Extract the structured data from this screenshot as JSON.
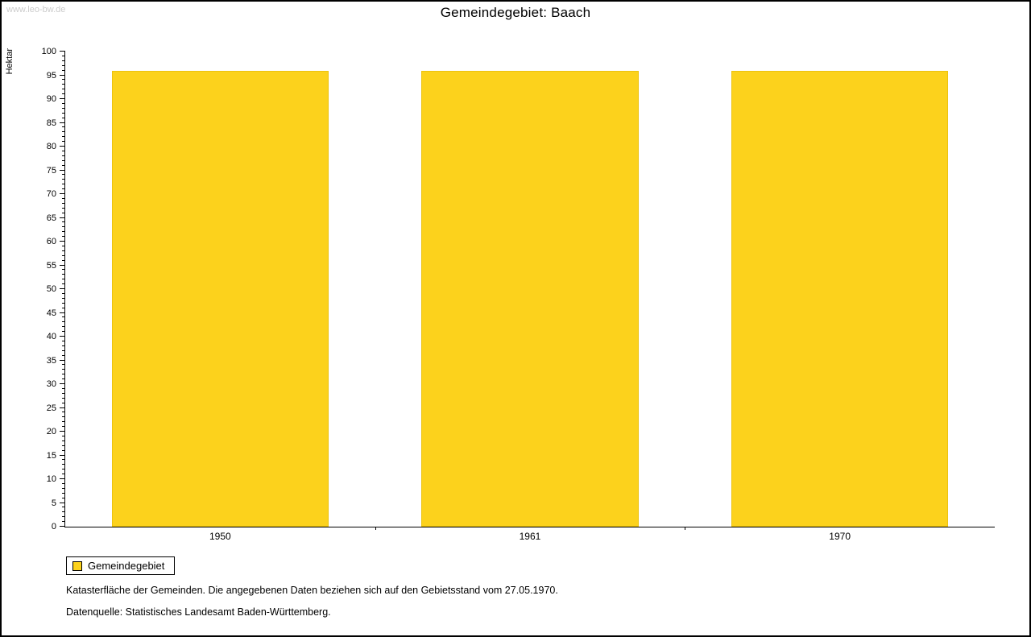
{
  "watermark": "www.leo-bw.de",
  "title": "Gemeindegebiet: Baach",
  "chart_data": {
    "type": "bar",
    "categories": [
      "1950",
      "1961",
      "1970"
    ],
    "series": [
      {
        "name": "Gemeindegebiet",
        "values": [
          96,
          96,
          96
        ]
      }
    ],
    "title": "Gemeindegebiet: Baach",
    "xlabel": "",
    "ylabel": "Hektar",
    "ylim": [
      0,
      100
    ],
    "y_major_step": 5,
    "y_minor_step": 1,
    "grid": false,
    "legend_position": "bottom-left",
    "bar_color": "#fcd21c"
  },
  "legend": {
    "items": [
      {
        "label": "Gemeindegebiet",
        "color": "#fcd21c"
      }
    ]
  },
  "footer": {
    "line1": "Katasterfläche der Gemeinden. Die angegebenen Daten beziehen sich auf den Gebietsstand vom 27.05.1970.",
    "line2": "Datenquelle: Statistisches Landesamt Baden-Württemberg."
  }
}
